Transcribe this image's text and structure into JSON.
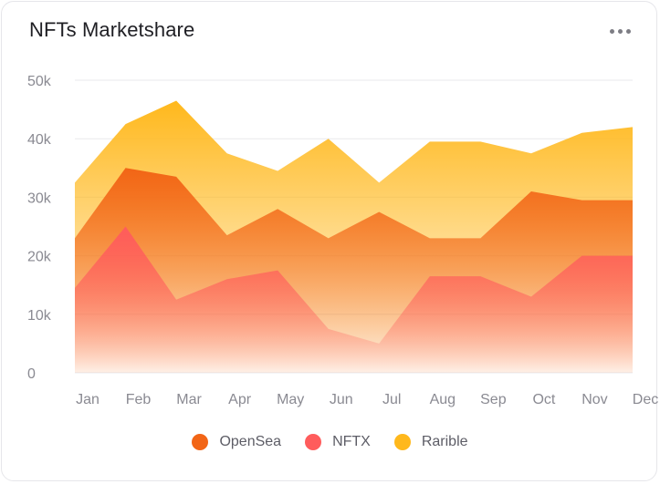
{
  "header": {
    "title": "NFTs Marketshare",
    "menu_icon": "more-horizontal-icon"
  },
  "chart_data": {
    "type": "area",
    "title": "NFTs Marketshare",
    "xlabel": "",
    "ylabel": "",
    "categories": [
      "Jan",
      "Feb",
      "Mar",
      "Apr",
      "May",
      "Jun",
      "Jul",
      "Aug",
      "Sep",
      "Oct",
      "Nov",
      "Dec"
    ],
    "yticks": [
      "0",
      "10k",
      "20k",
      "30k",
      "40k",
      "50k"
    ],
    "ylim": [
      0,
      50000
    ],
    "grid": true,
    "legend_position": "bottom",
    "series": [
      {
        "name": "Rarible",
        "color": "#FFB81C",
        "values": [
          32500,
          42500,
          46500,
          37500,
          34500,
          40000,
          32500,
          39500,
          39500,
          37500,
          41000,
          42000
        ]
      },
      {
        "name": "OpenSea",
        "color": "#F26516",
        "values": [
          23000,
          35000,
          33500,
          23500,
          28000,
          23000,
          27500,
          23000,
          23000,
          31000,
          29500,
          29500
        ]
      },
      {
        "name": "NFTX",
        "color": "#FF5C5C",
        "values": [
          14500,
          25000,
          12500,
          16000,
          17500,
          7500,
          5000,
          16500,
          16500,
          13000,
          20000,
          20000
        ]
      }
    ]
  },
  "legend": [
    {
      "label": "OpenSea",
      "color": "#F26516"
    },
    {
      "label": "NFTX",
      "color": "#FF5C5C"
    },
    {
      "label": "Rarible",
      "color": "#FFB81C"
    }
  ]
}
